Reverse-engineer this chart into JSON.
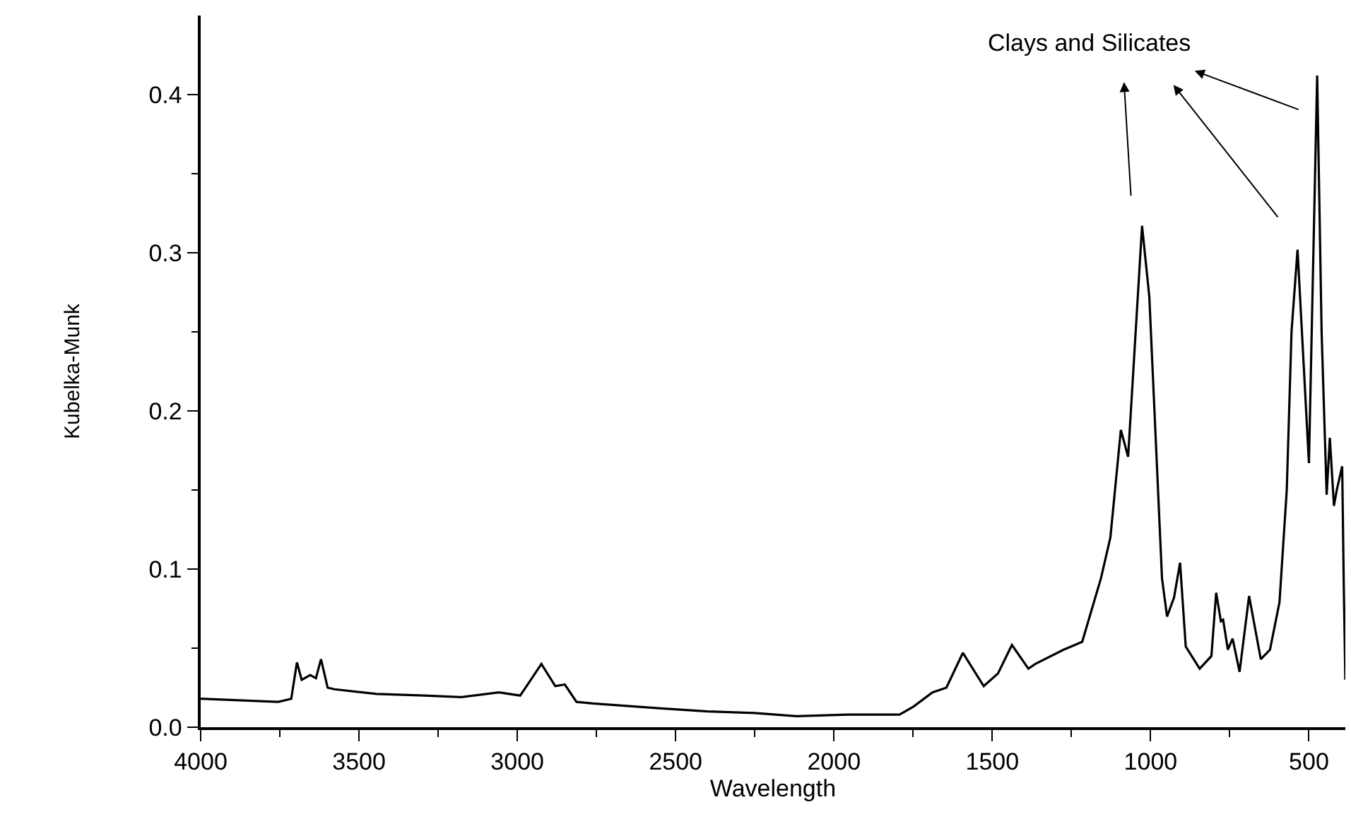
{
  "chart_data": {
    "type": "line",
    "xlabel": "Wavelength",
    "ylabel": "Kubelka-Munk",
    "annotations": [
      "Clays and Silicates"
    ],
    "xlim": [
      4000,
      385
    ],
    "ylim": [
      0,
      0.45
    ],
    "xticks": [
      4000,
      {
        "value": 3750,
        "label": null
      },
      3500,
      {
        "value": 3250,
        "label": null
      },
      3000,
      {
        "value": 2750,
        "label": null
      },
      2500,
      {
        "value": 2250,
        "label": null
      },
      2000,
      {
        "value": 1750,
        "label": null
      },
      1500,
      {
        "value": 1250,
        "label": null
      },
      1000,
      {
        "value": 750,
        "label": null
      },
      500
    ],
    "yticks": [
      {
        "value": 0,
        "label": "0.0"
      },
      {
        "value": 0.05,
        "label": null
      },
      0.1,
      {
        "value": 0.15,
        "label": null
      },
      0.2,
      {
        "value": 0.25,
        "label": null
      },
      0.3,
      {
        "value": 0.35,
        "label": null
      },
      0.4
    ],
    "grid": false,
    "marker": "none",
    "line_style": "solid",
    "series": [
      {
        "color": "#000000",
        "x": [
          4000,
          3755,
          3714,
          3696,
          3681,
          3654,
          3636,
          3620,
          3599,
          3577,
          3444,
          3295,
          3177,
          3058,
          2991,
          2954,
          2924,
          2880,
          2850,
          2813,
          2761,
          2553,
          2399,
          2251,
          2118,
          1956,
          1793,
          1749,
          1689,
          1645,
          1593,
          1527,
          1482,
          1438,
          1386,
          1364,
          1275,
          1216,
          1157,
          1127,
          1094,
          1071,
          1027,
          1004,
          964,
          948,
          926,
          907,
          889,
          845,
          808,
          793,
          778,
          771,
          756,
          741,
          719,
          689,
          652,
          623,
          593,
          570,
          555,
          536,
          500,
          474,
          460,
          444,
          434,
          421,
          412,
          395,
          390,
          385
        ],
        "values": [
          0.018,
          0.016,
          0.018,
          0.041,
          0.03,
          0.033,
          0.031,
          0.043,
          0.025,
          0.024,
          0.021,
          0.02,
          0.019,
          0.022,
          0.02,
          0.031,
          0.04,
          0.026,
          0.027,
          0.016,
          0.015,
          0.012,
          0.01,
          0.009,
          0.007,
          0.008,
          0.008,
          0.013,
          0.022,
          0.025,
          0.047,
          0.026,
          0.034,
          0.052,
          0.037,
          0.04,
          0.049,
          0.054,
          0.094,
          0.12,
          0.188,
          0.171,
          0.317,
          0.272,
          0.094,
          0.07,
          0.082,
          0.104,
          0.051,
          0.037,
          0.045,
          0.085,
          0.067,
          0.068,
          0.049,
          0.056,
          0.035,
          0.083,
          0.043,
          0.049,
          0.079,
          0.15,
          0.25,
          0.302,
          0.167,
          0.412,
          0.25,
          0.147,
          0.183,
          0.14,
          0.15,
          0.165,
          0.09,
          0.03
        ]
      }
    ]
  }
}
